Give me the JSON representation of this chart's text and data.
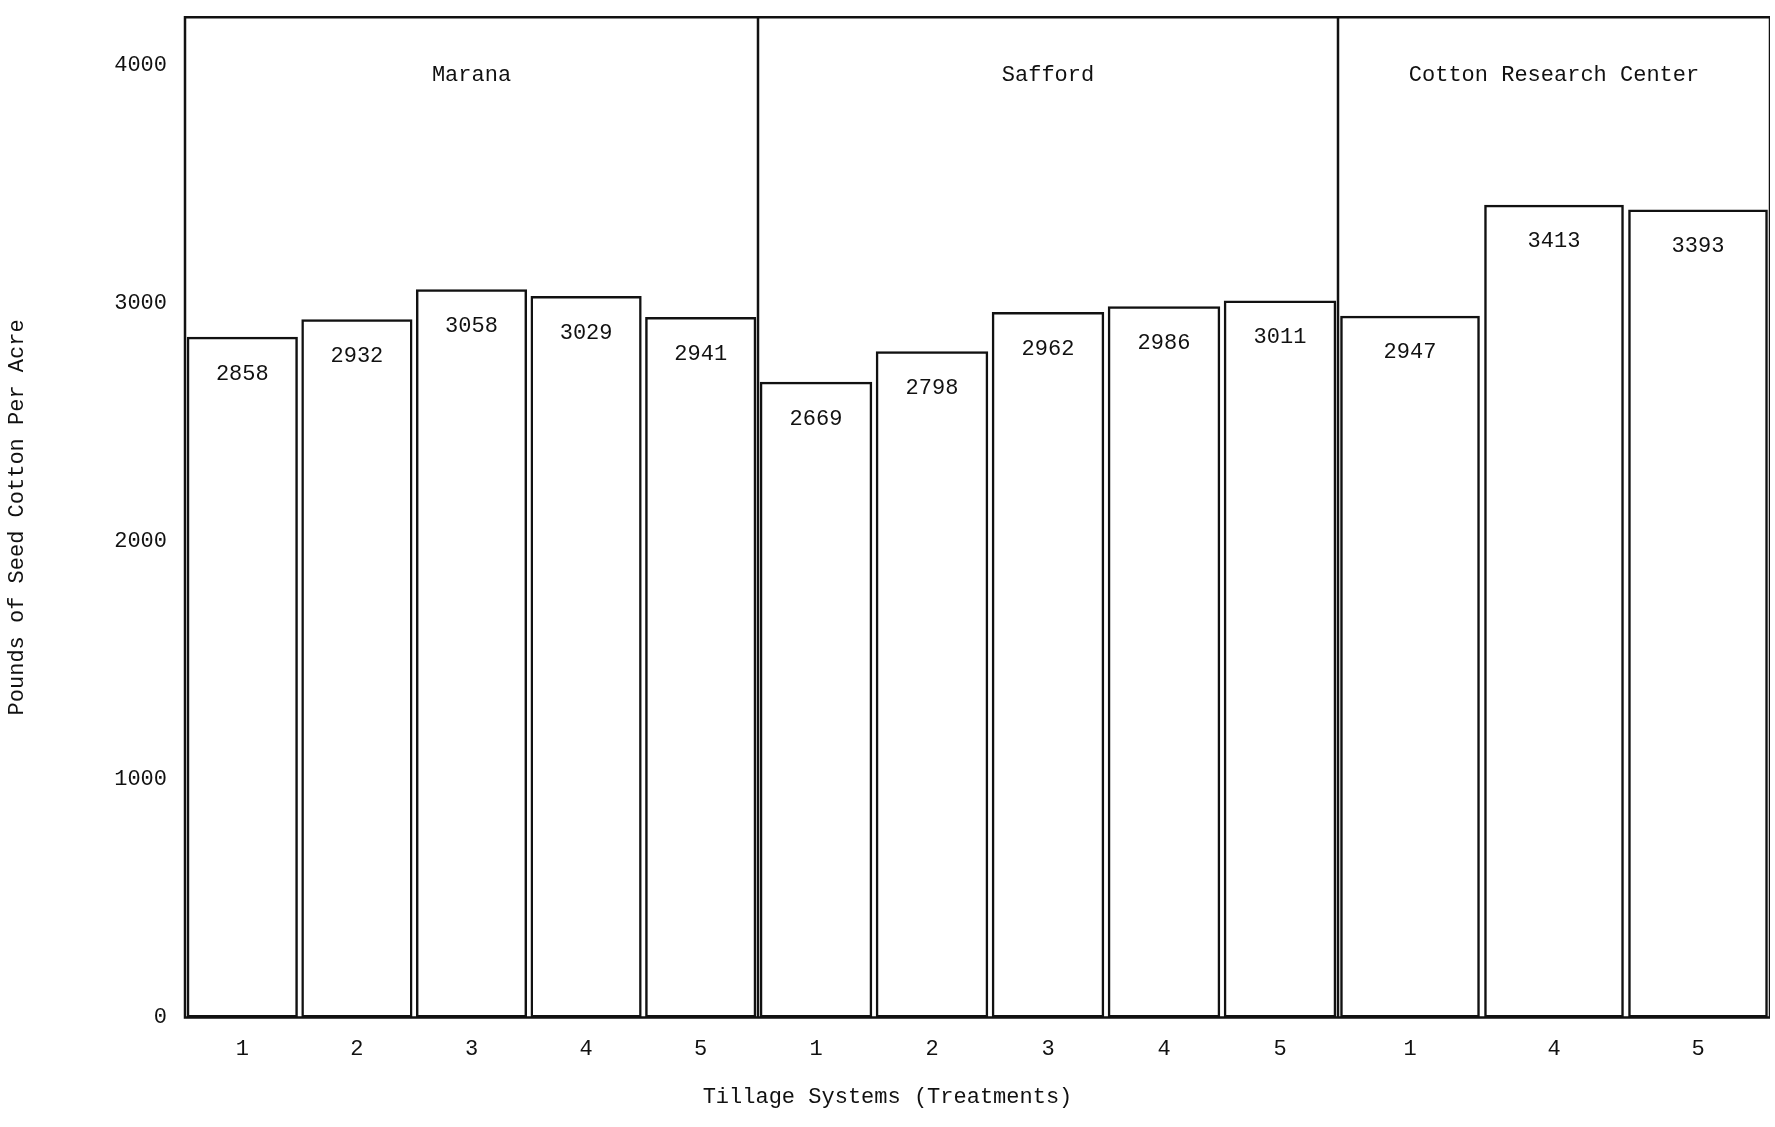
{
  "chart_data": [
    {
      "type": "bar",
      "title": "Marana",
      "ylabel": "Pounds of Seed Cotton Per Acre",
      "categories": [
        "1",
        "2",
        "3",
        "4",
        "5"
      ],
      "values": [
        2858,
        2932,
        3058,
        3029,
        2941
      ],
      "color": "#111111",
      "ylim": [
        0,
        4200
      ],
      "yticks": [
        0,
        1000,
        2000,
        3000,
        4000
      ],
      "data_labels": true,
      "grid": false,
      "legend": false
    },
    {
      "type": "bar",
      "title": "Safford",
      "xlabel": "Tillage Systems (Treatments)",
      "categories": [
        "1",
        "2",
        "3",
        "4",
        "5"
      ],
      "values": [
        2669,
        2798,
        2962,
        2986,
        3011
      ],
      "color": "#111111",
      "ylim": [
        0,
        4200
      ],
      "tick_labels": "x",
      "data_labels": true,
      "grid": false,
      "legend": false
    },
    {
      "type": "bar",
      "title": "Cotton Research Center",
      "categories": [
        "1",
        "4",
        "5"
      ],
      "values": [
        2947,
        3413,
        3393
      ],
      "color": "#111111",
      "ylim": [
        0,
        4200
      ],
      "tick_labels": "x",
      "data_labels": true,
      "grid": false,
      "legend": false
    }
  ]
}
